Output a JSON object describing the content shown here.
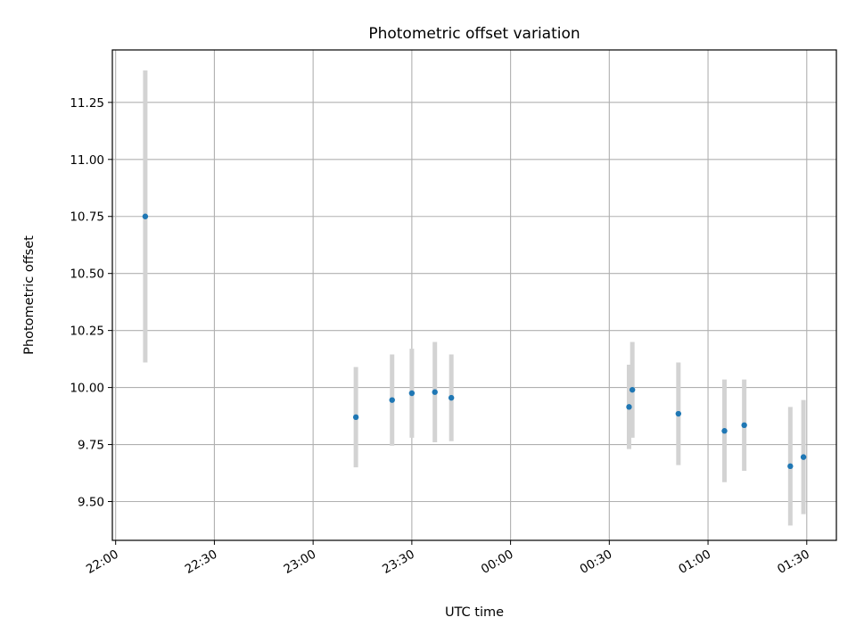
{
  "chart_data": {
    "type": "scatter",
    "title": "Photometric offset variation",
    "xlabel": "UTC time",
    "ylabel": "Photometric offset",
    "grid": true,
    "x_ticks": [
      "22:00",
      "22:30",
      "23:00",
      "23:30",
      "00:00",
      "00:30",
      "01:00",
      "01:30"
    ],
    "y_ticks": [
      "9.50",
      "9.75",
      "10.00",
      "10.25",
      "10.50",
      "10.75",
      "11.00",
      "11.25"
    ],
    "xlim": [
      "21:59",
      "01:39"
    ],
    "ylim": [
      9.33,
      11.48
    ],
    "point_color": "#1f77b4",
    "errorbar_color": "#d3d3d3",
    "series": [
      {
        "points": [
          {
            "x": "22:09",
            "y": 10.75,
            "err": 0.64
          },
          {
            "x": "23:13",
            "y": 9.87,
            "err": 0.22
          },
          {
            "x": "23:24",
            "y": 9.945,
            "err": 0.2
          },
          {
            "x": "23:30",
            "y": 9.975,
            "err": 0.195
          },
          {
            "x": "23:37",
            "y": 9.98,
            "err": 0.22
          },
          {
            "x": "23:42",
            "y": 9.955,
            "err": 0.19
          },
          {
            "x": "00:36",
            "y": 9.915,
            "err": 0.185
          },
          {
            "x": "00:37",
            "y": 9.99,
            "err": 0.21
          },
          {
            "x": "00:51",
            "y": 9.885,
            "err": 0.225
          },
          {
            "x": "01:05",
            "y": 9.81,
            "err": 0.225
          },
          {
            "x": "01:11",
            "y": 9.835,
            "err": 0.2
          },
          {
            "x": "01:25",
            "y": 9.655,
            "err": 0.26
          },
          {
            "x": "01:29",
            "y": 9.695,
            "err": 0.25
          }
        ]
      }
    ]
  }
}
